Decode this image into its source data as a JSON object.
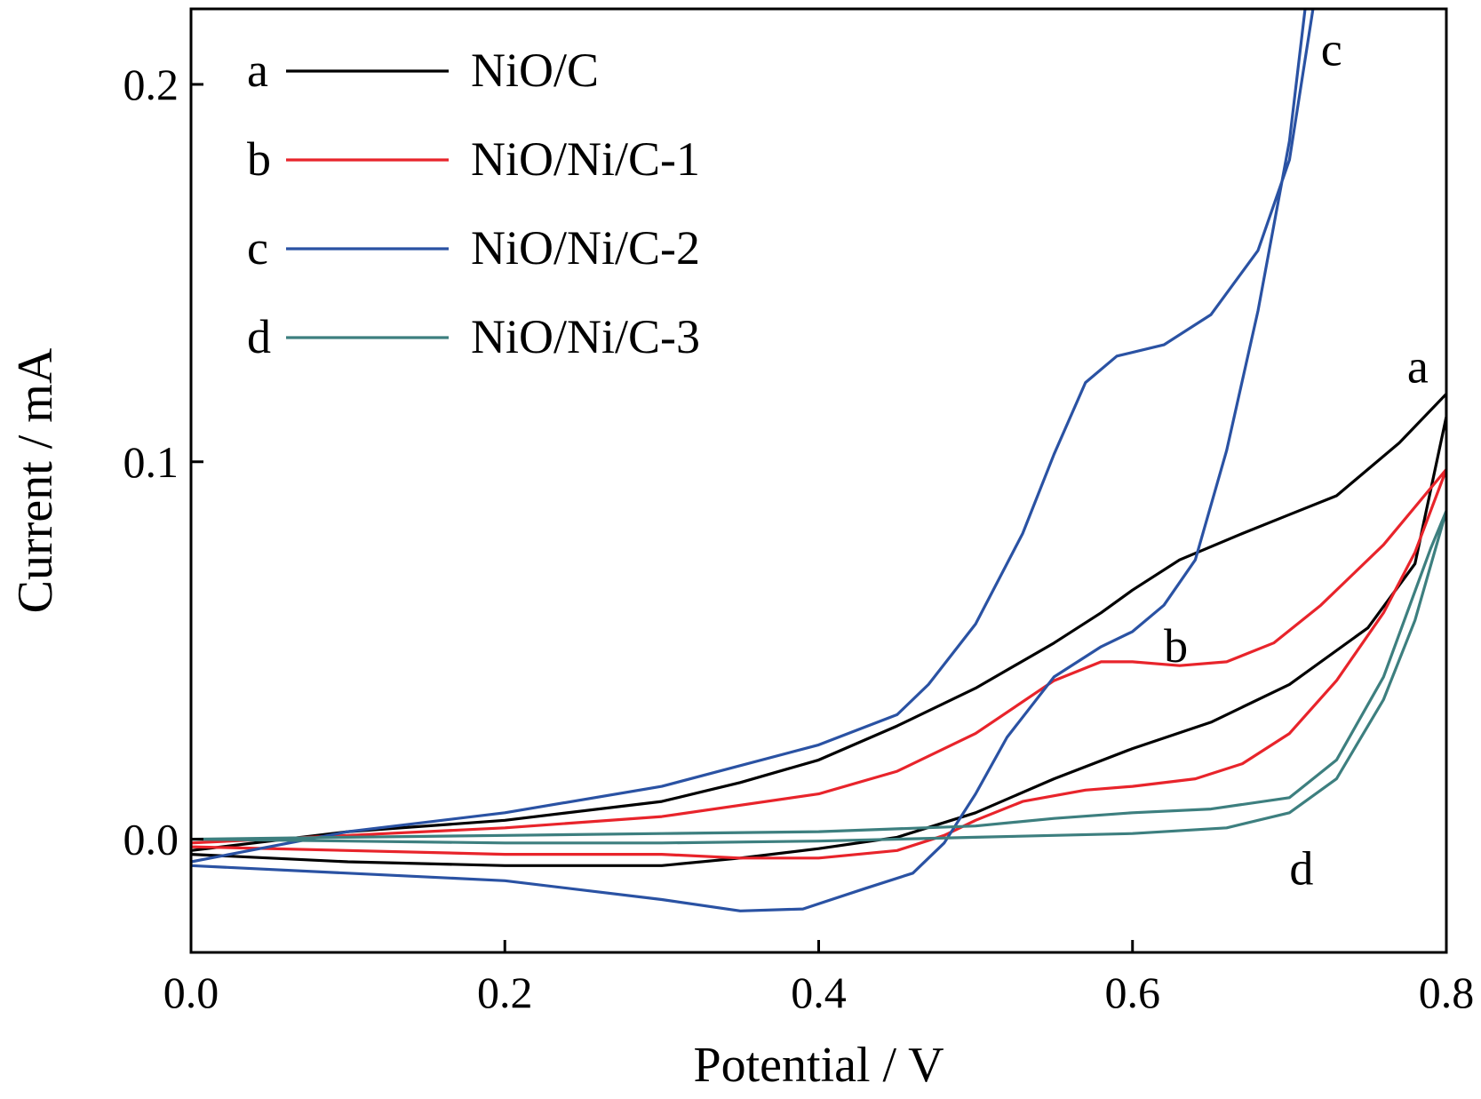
{
  "chart_data": {
    "type": "line",
    "xlabel": "Potential / V",
    "ylabel": "Current / mA",
    "xlim": [
      0.0,
      0.8
    ],
    "ylim": [
      -0.03,
      0.22
    ],
    "xticks": [
      {
        "value": 0.0,
        "label": "0.0"
      },
      {
        "value": 0.2,
        "label": "0.2"
      },
      {
        "value": 0.4,
        "label": "0.4"
      },
      {
        "value": 0.6,
        "label": "0.6"
      },
      {
        "value": 0.8,
        "label": "0.8"
      }
    ],
    "yticks": [
      {
        "value": 0.0,
        "label": "0.0"
      },
      {
        "value": 0.1,
        "label": "0.1"
      },
      {
        "value": 0.2,
        "label": "0.2"
      }
    ],
    "grid": false,
    "legend_position": "top-left",
    "series": [
      {
        "key": "a",
        "name": "NiO/C",
        "color": "#000000",
        "points": [
          [
            0,
            -0.004
          ],
          [
            0.1,
            -0.006
          ],
          [
            0.2,
            -0.007
          ],
          [
            0.3,
            -0.007
          ],
          [
            0.35,
            -0.005
          ],
          [
            0.4,
            -0.0025
          ],
          [
            0.45,
            0.0005
          ],
          [
            0.5,
            0.007
          ],
          [
            0.55,
            0.016
          ],
          [
            0.6,
            0.024
          ],
          [
            0.65,
            0.031
          ],
          [
            0.7,
            0.041
          ],
          [
            0.75,
            0.056
          ],
          [
            0.78,
            0.073
          ],
          [
            0.8,
            0.112
          ],
          [
            0.8,
            0.118
          ],
          [
            0.77,
            0.105
          ],
          [
            0.73,
            0.091
          ],
          [
            0.7,
            0.086
          ],
          [
            0.67,
            0.081
          ],
          [
            0.63,
            0.074
          ],
          [
            0.6,
            0.066
          ],
          [
            0.58,
            0.06
          ],
          [
            0.55,
            0.052
          ],
          [
            0.5,
            0.04
          ],
          [
            0.45,
            0.03
          ],
          [
            0.4,
            0.021
          ],
          [
            0.35,
            0.015
          ],
          [
            0.3,
            0.01
          ],
          [
            0.2,
            0.005
          ],
          [
            0.1,
            0.002
          ],
          [
            0,
            -0.003
          ]
        ],
        "label_at": [
          0.775,
          0.121
        ]
      },
      {
        "key": "b",
        "name": "NiO/Ni/C-1",
        "color": "#e8242b",
        "points": [
          [
            0,
            -0.002
          ],
          [
            0.1,
            -0.003
          ],
          [
            0.2,
            -0.004
          ],
          [
            0.3,
            -0.004
          ],
          [
            0.35,
            -0.005
          ],
          [
            0.4,
            -0.005
          ],
          [
            0.45,
            -0.003
          ],
          [
            0.48,
            0.001
          ],
          [
            0.5,
            0.005
          ],
          [
            0.53,
            0.01
          ],
          [
            0.57,
            0.013
          ],
          [
            0.6,
            0.014
          ],
          [
            0.64,
            0.016
          ],
          [
            0.67,
            0.02
          ],
          [
            0.7,
            0.028
          ],
          [
            0.73,
            0.042
          ],
          [
            0.76,
            0.06
          ],
          [
            0.78,
            0.076
          ],
          [
            0.8,
            0.098
          ],
          [
            0.79,
            0.093
          ],
          [
            0.76,
            0.078
          ],
          [
            0.72,
            0.062
          ],
          [
            0.69,
            0.052
          ],
          [
            0.66,
            0.047
          ],
          [
            0.63,
            0.046
          ],
          [
            0.6,
            0.047
          ],
          [
            0.58,
            0.047
          ],
          [
            0.55,
            0.042
          ],
          [
            0.5,
            0.028
          ],
          [
            0.45,
            0.018
          ],
          [
            0.4,
            0.012
          ],
          [
            0.3,
            0.006
          ],
          [
            0.2,
            0.003
          ],
          [
            0.1,
            0.001
          ],
          [
            0,
            -0.001
          ]
        ],
        "label_at": [
          0.62,
          0.047
        ]
      },
      {
        "key": "c",
        "name": "NiO/Ni/C-2",
        "color": "#2a52a3",
        "points": [
          [
            0,
            -0.007
          ],
          [
            0.1,
            -0.009
          ],
          [
            0.2,
            -0.011
          ],
          [
            0.3,
            -0.016
          ],
          [
            0.35,
            -0.019
          ],
          [
            0.39,
            -0.0185
          ],
          [
            0.43,
            -0.013
          ],
          [
            0.46,
            -0.009
          ],
          [
            0.48,
            -0.001
          ],
          [
            0.5,
            0.012
          ],
          [
            0.52,
            0.027
          ],
          [
            0.55,
            0.043
          ],
          [
            0.58,
            0.051
          ],
          [
            0.6,
            0.055
          ],
          [
            0.62,
            0.062
          ],
          [
            0.64,
            0.074
          ],
          [
            0.66,
            0.103
          ],
          [
            0.68,
            0.14
          ],
          [
            0.7,
            0.185
          ],
          [
            0.71,
            0.22
          ],
          [
            0.715,
            0.22
          ],
          [
            0.7,
            0.18
          ],
          [
            0.68,
            0.156
          ],
          [
            0.65,
            0.139
          ],
          [
            0.62,
            0.131
          ],
          [
            0.59,
            0.128
          ],
          [
            0.57,
            0.121
          ],
          [
            0.55,
            0.102
          ],
          [
            0.53,
            0.081
          ],
          [
            0.5,
            0.057
          ],
          [
            0.47,
            0.041
          ],
          [
            0.45,
            0.033
          ],
          [
            0.4,
            0.025
          ],
          [
            0.3,
            0.014
          ],
          [
            0.2,
            0.007
          ],
          [
            0.1,
            0.002
          ],
          [
            0,
            -0.006
          ]
        ],
        "label_at": [
          0.72,
          0.205
        ]
      },
      {
        "key": "d",
        "name": "NiO/Ni/C-3",
        "color": "#3d7f7f",
        "points": [
          [
            0,
            0.0
          ],
          [
            0.1,
            -0.0005
          ],
          [
            0.2,
            -0.001
          ],
          [
            0.3,
            -0.001
          ],
          [
            0.4,
            -0.0005
          ],
          [
            0.5,
            0.0005
          ],
          [
            0.6,
            0.0015
          ],
          [
            0.66,
            0.003
          ],
          [
            0.7,
            0.007
          ],
          [
            0.73,
            0.016
          ],
          [
            0.76,
            0.037
          ],
          [
            0.78,
            0.058
          ],
          [
            0.8,
            0.087
          ],
          [
            0.79,
            0.077
          ],
          [
            0.76,
            0.043
          ],
          [
            0.73,
            0.021
          ],
          [
            0.7,
            0.011
          ],
          [
            0.65,
            0.008
          ],
          [
            0.6,
            0.007
          ],
          [
            0.55,
            0.0055
          ],
          [
            0.5,
            0.0035
          ],
          [
            0.4,
            0.002
          ],
          [
            0.3,
            0.0015
          ],
          [
            0.2,
            0.001
          ],
          [
            0.1,
            0.0005
          ],
          [
            0,
            0.0
          ]
        ],
        "label_at": [
          0.7,
          -0.012
        ]
      }
    ]
  }
}
